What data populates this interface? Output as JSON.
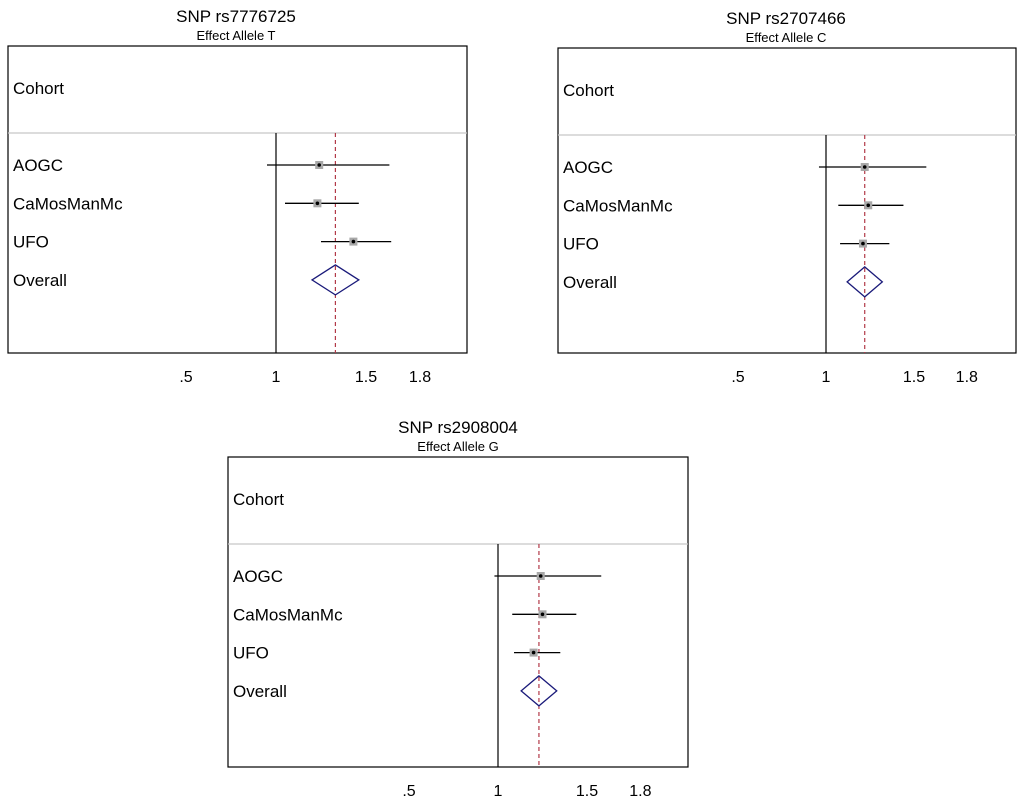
{
  "chart_data": [
    {
      "type": "forest",
      "title": "SNP rs7776725",
      "subtitle": "Effect Allele T",
      "column_header": "Cohort",
      "null_line": 1,
      "xticks": [
        0.5,
        1,
        1.5,
        1.8
      ],
      "xtick_labels": [
        ".5",
        "1",
        "1.5",
        "1.8"
      ],
      "xlim": [
        0.4,
        2.0
      ],
      "pooled": 1.33,
      "studies": [
        {
          "label": "AOGC",
          "est": 1.24,
          "lo": 0.95,
          "hi": 1.63
        },
        {
          "label": "CaMosManMc",
          "est": 1.23,
          "lo": 1.05,
          "hi": 1.46
        },
        {
          "label": "UFO",
          "est": 1.43,
          "lo": 1.25,
          "hi": 1.64
        }
      ],
      "overall": {
        "label": "Overall",
        "est": 1.33,
        "lo": 1.2,
        "hi": 1.46
      }
    },
    {
      "type": "forest",
      "title": "SNP rs2707466",
      "subtitle": "Effect Allele C",
      "column_header": "Cohort",
      "null_line": 1,
      "xticks": [
        0.5,
        1,
        1.5,
        1.8
      ],
      "xtick_labels": [
        ".5",
        "1",
        "1.5",
        "1.8"
      ],
      "xlim": [
        0.4,
        2.0
      ],
      "pooled": 1.22,
      "studies": [
        {
          "label": "AOGC",
          "est": 1.22,
          "lo": 0.96,
          "hi": 1.57
        },
        {
          "label": "CaMosManMc",
          "est": 1.24,
          "lo": 1.07,
          "hi": 1.44
        },
        {
          "label": "UFO",
          "est": 1.21,
          "lo": 1.08,
          "hi": 1.36
        }
      ],
      "overall": {
        "label": "Overall",
        "est": 1.22,
        "lo": 1.12,
        "hi": 1.32
      }
    },
    {
      "type": "forest",
      "title": "SNP rs2908004",
      "subtitle": "Effect Allele G",
      "column_header": "Cohort",
      "null_line": 1,
      "xticks": [
        0.5,
        1,
        1.5,
        1.8
      ],
      "xtick_labels": [
        ".5",
        "1",
        "1.5",
        "1.8"
      ],
      "xlim": [
        0.4,
        2.0
      ],
      "pooled": 1.23,
      "studies": [
        {
          "label": "AOGC",
          "est": 1.24,
          "lo": 0.98,
          "hi": 1.58
        },
        {
          "label": "CaMosManMc",
          "est": 1.25,
          "lo": 1.08,
          "hi": 1.44
        },
        {
          "label": "UFO",
          "est": 1.2,
          "lo": 1.09,
          "hi": 1.35
        }
      ],
      "overall": {
        "label": "Overall",
        "est": 1.23,
        "lo": 1.13,
        "hi": 1.33
      }
    }
  ],
  "colors": {
    "frame": "#000000",
    "separator": "#c8c8c8",
    "pooled_line": "#b23a48",
    "diamond": "#1a1a7a",
    "study_box": "#a8a8a8",
    "ci_line": "#000000"
  }
}
